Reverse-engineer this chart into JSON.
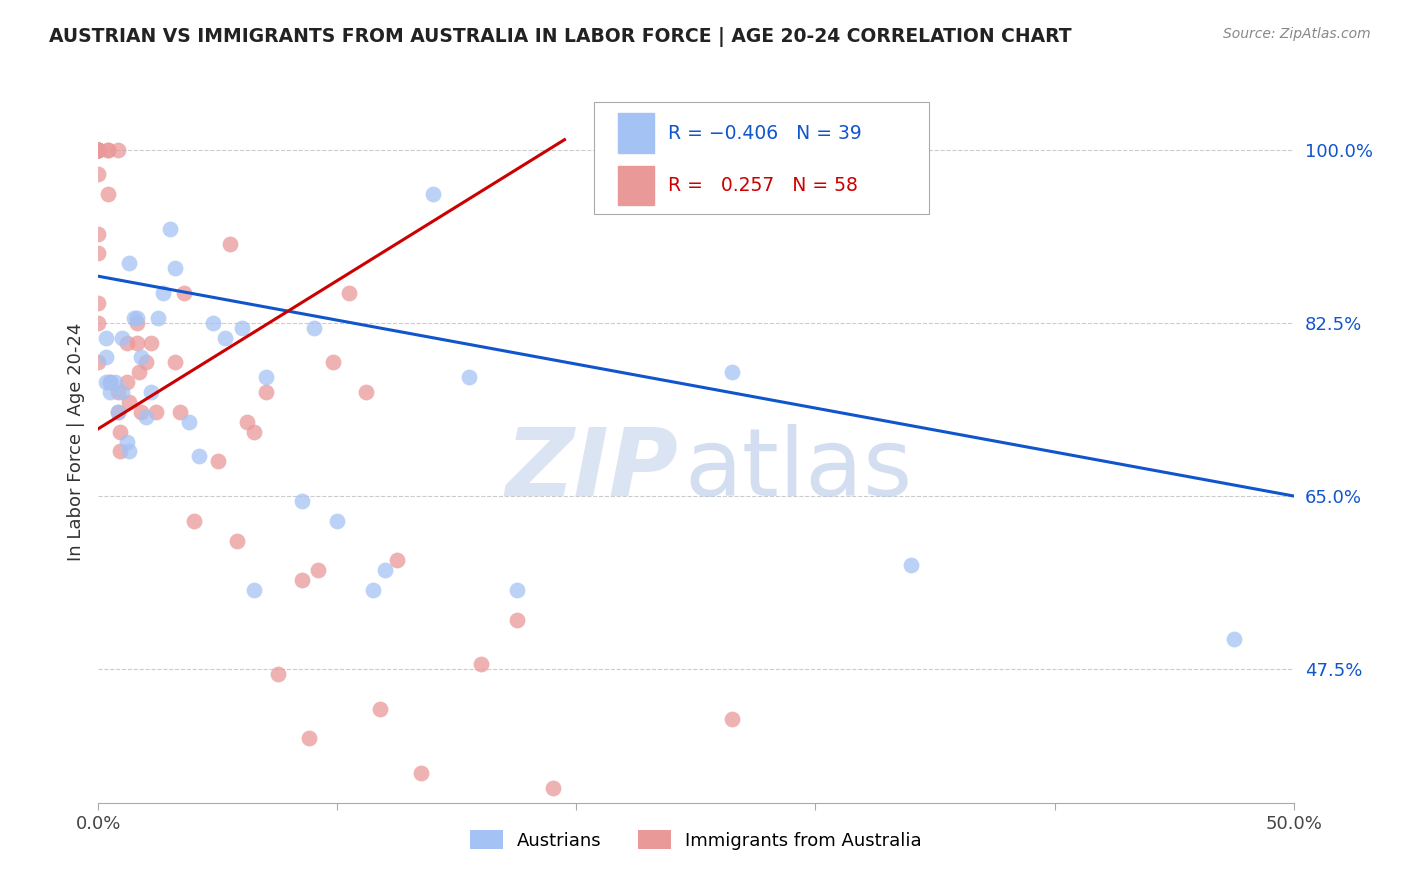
{
  "title": "AUSTRIAN VS IMMIGRANTS FROM AUSTRALIA IN LABOR FORCE | AGE 20-24 CORRELATION CHART",
  "source": "Source: ZipAtlas.com",
  "ylabel": "In Labor Force | Age 20-24",
  "yticks": [
    0.475,
    0.65,
    0.825,
    1.0
  ],
  "ytick_labels": [
    "47.5%",
    "65.0%",
    "82.5%",
    "100.0%"
  ],
  "xlim": [
    0.0,
    0.5
  ],
  "ylim": [
    0.34,
    1.07
  ],
  "legend_label1": "Austrians",
  "legend_label2": "Immigrants from Australia",
  "R1": -0.406,
  "N1": 39,
  "R2": 0.257,
  "N2": 58,
  "blue_color": "#a4c2f4",
  "pink_color": "#ea9999",
  "blue_line_color": "#1155cc",
  "pink_line_color": "#cc0000",
  "blue_line_x0": 0.0,
  "blue_line_y0": 0.872,
  "blue_line_x1": 0.5,
  "blue_line_y1": 0.65,
  "pink_line_x0": 0.0,
  "pink_line_y0": 0.718,
  "pink_line_x1": 0.195,
  "pink_line_y1": 1.01,
  "blue_x": [
    0.003,
    0.003,
    0.003,
    0.005,
    0.005,
    0.007,
    0.008,
    0.01,
    0.01,
    0.012,
    0.013,
    0.013,
    0.015,
    0.016,
    0.018,
    0.02,
    0.022,
    0.025,
    0.027,
    0.03,
    0.032,
    0.038,
    0.042,
    0.048,
    0.053,
    0.06,
    0.065,
    0.07,
    0.085,
    0.09,
    0.1,
    0.115,
    0.12,
    0.14,
    0.155,
    0.175,
    0.265,
    0.34,
    0.475
  ],
  "blue_y": [
    0.765,
    0.79,
    0.81,
    0.755,
    0.765,
    0.765,
    0.735,
    0.81,
    0.755,
    0.705,
    0.695,
    0.885,
    0.83,
    0.83,
    0.79,
    0.73,
    0.755,
    0.83,
    0.855,
    0.92,
    0.88,
    0.725,
    0.69,
    0.825,
    0.81,
    0.82,
    0.555,
    0.77,
    0.645,
    0.82,
    0.625,
    0.555,
    0.575,
    0.955,
    0.77,
    0.555,
    0.775,
    0.58,
    0.505
  ],
  "pink_x": [
    0.0,
    0.0,
    0.0,
    0.0,
    0.0,
    0.0,
    0.0,
    0.0,
    0.0,
    0.0,
    0.0,
    0.0,
    0.0,
    0.0,
    0.0,
    0.004,
    0.004,
    0.004,
    0.005,
    0.008,
    0.008,
    0.008,
    0.009,
    0.009,
    0.012,
    0.012,
    0.013,
    0.016,
    0.016,
    0.017,
    0.018,
    0.02,
    0.022,
    0.024,
    0.032,
    0.034,
    0.036,
    0.04,
    0.05,
    0.055,
    0.058,
    0.062,
    0.065,
    0.07,
    0.075,
    0.085,
    0.088,
    0.092,
    0.098,
    0.105,
    0.112,
    0.118,
    0.125,
    0.135,
    0.16,
    0.175,
    0.19,
    0.265
  ],
  "pink_y": [
    1.0,
    1.0,
    1.0,
    1.0,
    1.0,
    1.0,
    1.0,
    1.0,
    1.0,
    0.975,
    0.915,
    0.895,
    0.845,
    0.825,
    0.785,
    1.0,
    1.0,
    0.955,
    0.765,
    1.0,
    0.755,
    0.735,
    0.715,
    0.695,
    0.805,
    0.765,
    0.745,
    0.825,
    0.805,
    0.775,
    0.735,
    0.785,
    0.805,
    0.735,
    0.785,
    0.735,
    0.855,
    0.625,
    0.685,
    0.905,
    0.605,
    0.725,
    0.715,
    0.755,
    0.47,
    0.565,
    0.405,
    0.575,
    0.785,
    0.855,
    0.755,
    0.435,
    0.585,
    0.37,
    0.48,
    0.525,
    0.355,
    0.425
  ]
}
